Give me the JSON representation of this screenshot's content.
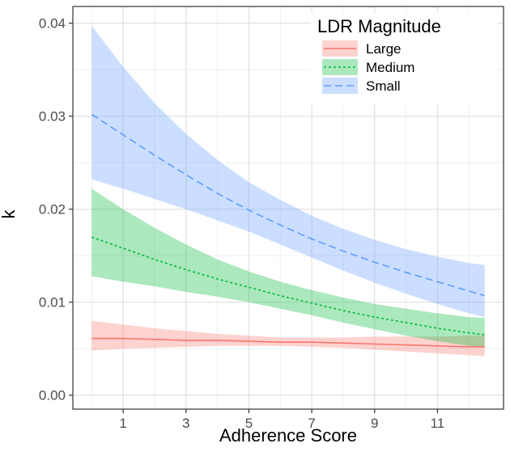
{
  "chart_data": {
    "type": "line",
    "xlabel": "Adherence Score",
    "ylabel": "k",
    "xlim": [
      -0.6,
      13.1
    ],
    "ylim": [
      -0.0015,
      0.0418
    ],
    "xticks": [
      1,
      3,
      5,
      7,
      9,
      11
    ],
    "xtick_labels": [
      "1",
      "3",
      "5",
      "7",
      "9",
      "11"
    ],
    "yticks": [
      0.0,
      0.01,
      0.02,
      0.03,
      0.04
    ],
    "ytick_labels": [
      "0.00",
      "0.01",
      "0.02",
      "0.03",
      "0.04"
    ],
    "grid": true,
    "legend": {
      "title": "LDR Magnitude",
      "position": "top-right"
    },
    "series": [
      {
        "name": "Large",
        "color": "#F8766D",
        "linestyle": "solid",
        "x": [
          0,
          1,
          2,
          3,
          4,
          5,
          6,
          7,
          8,
          9,
          10,
          11,
          12,
          12.5
        ],
        "y": [
          0.0061,
          0.0061,
          0.006,
          0.0059,
          0.0059,
          0.0058,
          0.0057,
          0.0057,
          0.0056,
          0.0055,
          0.0054,
          0.0053,
          0.0052,
          0.0052
        ],
        "lower": [
          0.0048,
          0.005,
          0.0051,
          0.0052,
          0.0053,
          0.0053,
          0.0053,
          0.0052,
          0.0051,
          0.0049,
          0.0047,
          0.0045,
          0.0043,
          0.0042
        ],
        "upper": [
          0.008,
          0.0076,
          0.0072,
          0.0069,
          0.0066,
          0.0064,
          0.0062,
          0.0062,
          0.0062,
          0.0063,
          0.0063,
          0.0063,
          0.0064,
          0.0064
        ]
      },
      {
        "name": "Medium",
        "color": "#00BA38",
        "linestyle": "dotted",
        "x": [
          0,
          1,
          2,
          3,
          4,
          5,
          6,
          7,
          8,
          9,
          10,
          11,
          12,
          12.5
        ],
        "y": [
          0.017,
          0.0158,
          0.0146,
          0.0135,
          0.0125,
          0.0116,
          0.0107,
          0.0099,
          0.0091,
          0.0084,
          0.0078,
          0.0072,
          0.0067,
          0.0065
        ],
        "lower": [
          0.0128,
          0.0122,
          0.0117,
          0.0111,
          0.0106,
          0.01,
          0.0093,
          0.0086,
          0.0078,
          0.0071,
          0.0064,
          0.0058,
          0.0053,
          0.0051
        ],
        "upper": [
          0.0222,
          0.02,
          0.018,
          0.0162,
          0.0146,
          0.0133,
          0.0122,
          0.0113,
          0.0105,
          0.0098,
          0.0093,
          0.0088,
          0.0084,
          0.0083
        ]
      },
      {
        "name": "Small",
        "color": "#619CFF",
        "linestyle": "dashed",
        "x": [
          0,
          1,
          2,
          3,
          4,
          5,
          6,
          7,
          8,
          9,
          10,
          11,
          12,
          12.5
        ],
        "y": [
          0.0302,
          0.028,
          0.0258,
          0.0237,
          0.0217,
          0.0199,
          0.0183,
          0.0168,
          0.0155,
          0.0143,
          0.0132,
          0.0122,
          0.0112,
          0.0107
        ],
        "lower": [
          0.0232,
          0.0222,
          0.0211,
          0.02,
          0.0188,
          0.0176,
          0.0162,
          0.0148,
          0.0134,
          0.0121,
          0.0109,
          0.0098,
          0.0088,
          0.0084
        ],
        "upper": [
          0.0397,
          0.0353,
          0.0314,
          0.0281,
          0.0253,
          0.0229,
          0.021,
          0.0193,
          0.0179,
          0.0167,
          0.0157,
          0.0149,
          0.0142,
          0.014
        ]
      }
    ]
  }
}
